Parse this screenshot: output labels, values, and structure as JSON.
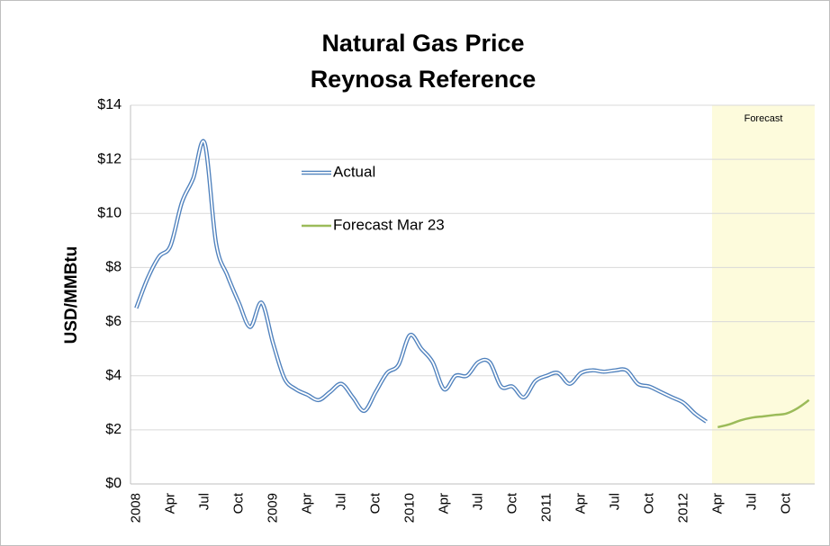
{
  "chart_data": {
    "type": "line",
    "title": [
      "Natural Gas Price",
      "Reynosa Reference"
    ],
    "ylabel": "USD/MMBtu",
    "annotation": "Forecast",
    "categories": [
      "2008",
      null,
      null,
      "Apr",
      null,
      null,
      "Jul",
      null,
      null,
      "Oct",
      null,
      null,
      "2009",
      null,
      null,
      "Apr",
      null,
      null,
      "Jul",
      null,
      null,
      "Oct",
      null,
      null,
      "2010",
      null,
      null,
      "Apr",
      null,
      null,
      "Jul",
      null,
      null,
      "Oct",
      null,
      null,
      "2011",
      null,
      null,
      "Apr",
      null,
      null,
      "Jul",
      null,
      null,
      "Oct",
      null,
      null,
      "2012",
      null,
      null,
      "Apr",
      null,
      null,
      "Jul",
      null,
      null,
      "Oct",
      null,
      null
    ],
    "series": [
      {
        "name": "Actual",
        "color": "#4f81bd",
        "values": [
          6.5,
          7.6,
          8.4,
          8.8,
          10.4,
          11.3,
          12.6,
          8.9,
          7.7,
          6.7,
          5.8,
          6.7,
          5.2,
          3.9,
          3.5,
          3.3,
          3.1,
          3.4,
          3.7,
          3.2,
          2.7,
          3.4,
          4.1,
          4.4,
          5.5,
          5.0,
          4.5,
          3.5,
          4.0,
          4.0,
          4.5,
          4.5,
          3.6,
          3.6,
          3.2,
          3.8,
          4.0,
          4.1,
          3.7,
          4.1,
          4.2,
          4.15,
          4.2,
          4.2,
          3.7,
          3.6,
          3.4,
          3.2,
          3.0,
          2.6,
          2.3,
          null,
          null,
          null,
          null,
          null,
          null,
          null,
          null,
          null
        ]
      },
      {
        "name": "Forecast Mar 23",
        "color": "#9bbb59",
        "values": [
          null,
          null,
          null,
          null,
          null,
          null,
          null,
          null,
          null,
          null,
          null,
          null,
          null,
          null,
          null,
          null,
          null,
          null,
          null,
          null,
          null,
          null,
          null,
          null,
          null,
          null,
          null,
          null,
          null,
          null,
          null,
          null,
          null,
          null,
          null,
          null,
          null,
          null,
          null,
          null,
          null,
          null,
          null,
          null,
          null,
          null,
          null,
          null,
          null,
          null,
          null,
          2.1,
          2.2,
          2.35,
          2.45,
          2.5,
          2.55,
          2.6,
          2.8,
          3.1
        ]
      }
    ],
    "ylim": [
      0,
      14
    ],
    "yticks": [
      {
        "value": 0,
        "label": "$0"
      },
      {
        "value": 2,
        "label": "$2"
      },
      {
        "value": 4,
        "label": "$4"
      },
      {
        "value": 6,
        "label": "$6"
      },
      {
        "value": 8,
        "label": "$8"
      },
      {
        "value": 10,
        "label": "$10"
      },
      {
        "value": 12,
        "label": "$12"
      },
      {
        "value": 14,
        "label": "$14"
      }
    ],
    "grid": true,
    "forecast_shade_color": "#fdfbdc"
  }
}
